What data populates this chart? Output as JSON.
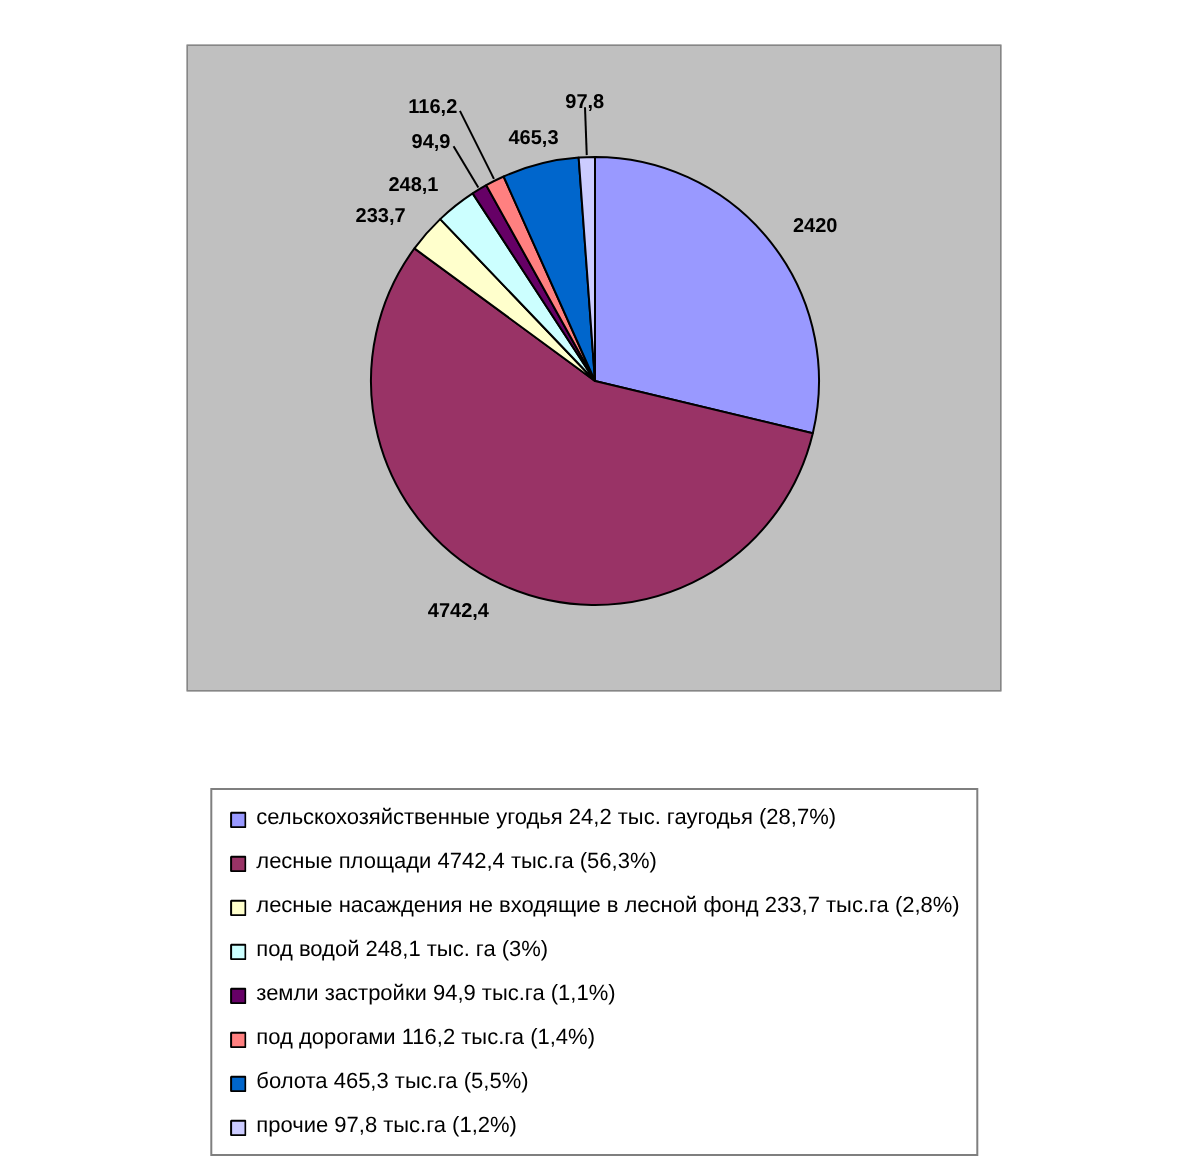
{
  "chart_data": {
    "type": "pie",
    "categories": [
      "сельскохозяйственные угодья 24,2 тыс. гаугодья (28,7%)",
      "лесные площади 4742,4 тыс.га (56,3%)",
      "лесные насаждения не входящие в лесной фонд 233,7 тыс.га (2,8%)",
      "под водой 248,1 тыс. га (3%)",
      "земли застройки 94,9 тыс.га (1,1%)",
      "под дорогами 116,2 тыс.га (1,4%)",
      "болота 465,3 тыс.га (5,5%)",
      "прочие 97,8 тыс.га (1,2%)"
    ],
    "values": [
      2420,
      4742.4,
      233.7,
      248.1,
      94.9,
      116.2,
      465.3,
      97.8
    ],
    "colors": [
      "#9999ff",
      "#993366",
      "#ffffcc",
      "#ccffff",
      "#660066",
      "#ff8080",
      "#0066cc",
      "#ccccff"
    ],
    "value_labels": [
      "2420",
      "4742,4",
      "233,7",
      "248,1",
      "94,9",
      "116,2",
      "465,3",
      "97,8"
    ],
    "legend": "bottom"
  }
}
